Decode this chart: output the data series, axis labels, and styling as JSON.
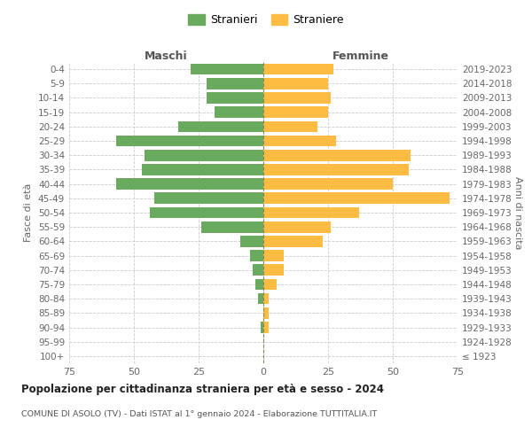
{
  "age_groups": [
    "100+",
    "95-99",
    "90-94",
    "85-89",
    "80-84",
    "75-79",
    "70-74",
    "65-69",
    "60-64",
    "55-59",
    "50-54",
    "45-49",
    "40-44",
    "35-39",
    "30-34",
    "25-29",
    "20-24",
    "15-19",
    "10-14",
    "5-9",
    "0-4"
  ],
  "birth_years": [
    "≤ 1923",
    "1924-1928",
    "1929-1933",
    "1934-1938",
    "1939-1943",
    "1944-1948",
    "1949-1953",
    "1954-1958",
    "1959-1963",
    "1964-1968",
    "1969-1973",
    "1974-1978",
    "1979-1983",
    "1984-1988",
    "1989-1993",
    "1994-1998",
    "1999-2003",
    "2004-2008",
    "2009-2013",
    "2014-2018",
    "2019-2023"
  ],
  "maschi": [
    0,
    0,
    1,
    0,
    2,
    3,
    4,
    5,
    9,
    24,
    44,
    42,
    57,
    47,
    46,
    57,
    33,
    19,
    22,
    22,
    28
  ],
  "femmine": [
    0,
    0,
    2,
    2,
    2,
    5,
    8,
    8,
    23,
    26,
    37,
    72,
    50,
    56,
    57,
    28,
    21,
    25,
    26,
    25,
    27
  ],
  "maschi_color": "#6aaa5e",
  "femmine_color": "#ffbc42",
  "background_color": "#ffffff",
  "grid_color": "#cccccc",
  "title": "Popolazione per cittadinanza straniera per età e sesso - 2024",
  "subtitle": "COMUNE DI ASOLO (TV) - Dati ISTAT al 1° gennaio 2024 - Elaborazione TUTTITALIA.IT",
  "xlabel_left": "Maschi",
  "xlabel_right": "Femmine",
  "ylabel_left": "Fasce di età",
  "ylabel_right": "Anni di nascita",
  "xlim": 75,
  "legend_stranieri": "Stranieri",
  "legend_straniere": "Straniere"
}
